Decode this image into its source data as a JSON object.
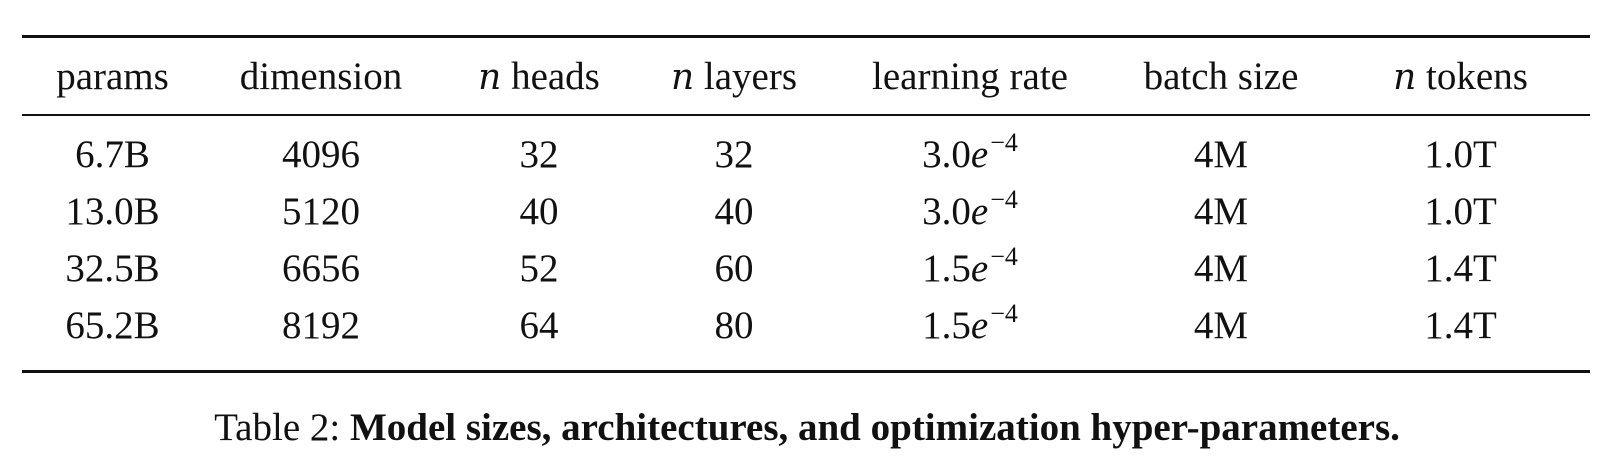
{
  "table": {
    "columns": [
      {
        "prefix": "",
        "label": "params"
      },
      {
        "prefix": "",
        "label": "dimension"
      },
      {
        "prefix": "n",
        "label": " heads"
      },
      {
        "prefix": "n",
        "label": " layers"
      },
      {
        "prefix": "",
        "label": "learning rate"
      },
      {
        "prefix": "",
        "label": "batch size"
      },
      {
        "prefix": "n",
        "label": " tokens"
      }
    ],
    "rows": [
      {
        "params": "6.7B",
        "dimension": "4096",
        "heads": "32",
        "layers": "32",
        "lr_base": "3.0",
        "lr_e": "e",
        "lr_exp": "−4",
        "batch": "4M",
        "tokens": "1.0T"
      },
      {
        "params": "13.0B",
        "dimension": "5120",
        "heads": "40",
        "layers": "40",
        "lr_base": "3.0",
        "lr_e": "e",
        "lr_exp": "−4",
        "batch": "4M",
        "tokens": "1.0T"
      },
      {
        "params": "32.5B",
        "dimension": "6656",
        "heads": "52",
        "layers": "60",
        "lr_base": "1.5",
        "lr_e": "e",
        "lr_exp": "−4",
        "batch": "4M",
        "tokens": "1.4T"
      },
      {
        "params": "65.2B",
        "dimension": "8192",
        "heads": "64",
        "layers": "80",
        "lr_base": "1.5",
        "lr_e": "e",
        "lr_exp": "−4",
        "batch": "4M",
        "tokens": "1.4T"
      }
    ]
  },
  "caption": {
    "label": "Table 2: ",
    "text": "Model sizes, architectures, and optimization hyper-parameters."
  }
}
